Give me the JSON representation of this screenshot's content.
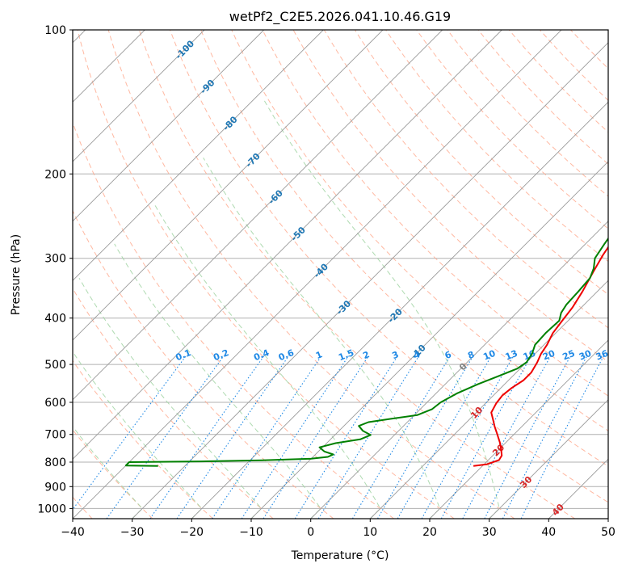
{
  "chart_data": {
    "type": "line",
    "title": "wetPf2_C2E5.2026.041.10.46.G19",
    "xlabel": "Temperature (°C)",
    "ylabel": "Pressure (hPa)",
    "xlim": [
      -40,
      50
    ],
    "ylim": [
      1050,
      100
    ],
    "x_ticks": [
      "−40",
      "−30",
      "−20",
      "−10",
      "0",
      "10",
      "20",
      "30",
      "40",
      "50"
    ],
    "y_ticks": [
      "100",
      "200",
      "300",
      "400",
      "500",
      "600",
      "700",
      "800",
      "900",
      "1000"
    ],
    "series": [
      {
        "name": "temperature",
        "color": "#ee0000",
        "points": [
          [
            18.5,
            815
          ],
          [
            20.5,
            808
          ],
          [
            21.8,
            792
          ],
          [
            21.5,
            775
          ],
          [
            20.5,
            755
          ],
          [
            19.0,
            728
          ],
          [
            17.0,
            697
          ],
          [
            15.5,
            675
          ],
          [
            14.0,
            652
          ],
          [
            12.5,
            630
          ],
          [
            11.8,
            603
          ],
          [
            11.5,
            580
          ],
          [
            11.8,
            560
          ],
          [
            12.5,
            540
          ],
          [
            12.5,
            520
          ],
          [
            11.8,
            495
          ],
          [
            11.0,
            475
          ],
          [
            10.5,
            455
          ],
          [
            9.5,
            430
          ],
          [
            9.0,
            405
          ],
          [
            8.5,
            380
          ],
          [
            7.5,
            352
          ],
          [
            6.0,
            320
          ],
          [
            4.8,
            295
          ],
          [
            3.8,
            270
          ],
          [
            2.0,
            245
          ],
          [
            0.5,
            225
          ],
          [
            -1.5,
            205
          ],
          [
            -3.0,
            185
          ],
          [
            -4.0,
            172
          ],
          [
            -4.5,
            160
          ],
          [
            -3.0,
            155
          ],
          [
            2.0,
            146
          ],
          [
            5.5,
            139
          ],
          [
            7.0,
            132
          ],
          [
            8.3,
            124
          ],
          [
            9.0,
            113
          ],
          [
            10.5,
            105
          ],
          [
            11.2,
            101
          ]
        ]
      },
      {
        "name": "dewpoint",
        "color": "#008000",
        "points": [
          [
            -34.5,
            815
          ],
          [
            -40.0,
            813
          ],
          [
            -40.0,
            800
          ],
          [
            -28.0,
            797
          ],
          [
            -18.0,
            793
          ],
          [
            -10.0,
            787
          ],
          [
            -7.5,
            780
          ],
          [
            -7.0,
            771
          ],
          [
            -9.0,
            760
          ],
          [
            -10.5,
            745
          ],
          [
            -8.5,
            730
          ],
          [
            -5.0,
            717
          ],
          [
            -4.0,
            702
          ],
          [
            -6.0,
            688
          ],
          [
            -7.5,
            672
          ],
          [
            -6.5,
            660
          ],
          [
            -3.5,
            650
          ],
          [
            0.5,
            638
          ],
          [
            2.0,
            620
          ],
          [
            2.3,
            600
          ],
          [
            3.5,
            575
          ],
          [
            5.5,
            550
          ],
          [
            7.5,
            530
          ],
          [
            9.5,
            510
          ],
          [
            10.0,
            495
          ],
          [
            9.5,
            475
          ],
          [
            8.5,
            455
          ],
          [
            8.3,
            430
          ],
          [
            8.5,
            405
          ],
          [
            7.5,
            390
          ],
          [
            7.0,
            375
          ],
          [
            6.8,
            352
          ],
          [
            6.5,
            330
          ],
          [
            5.5,
            315
          ],
          [
            4.0,
            300
          ],
          [
            3.2,
            280
          ],
          [
            2.5,
            262
          ],
          [
            2.3,
            248
          ],
          [
            1.0,
            230
          ],
          [
            -1.0,
            210
          ],
          [
            -3.0,
            190
          ],
          [
            -4.5,
            177
          ],
          [
            -4.5,
            168
          ],
          [
            -3.5,
            160
          ],
          [
            -5.0,
            150
          ],
          [
            -6.3,
            140
          ],
          [
            -6.5,
            132
          ],
          [
            -5.0,
            122
          ],
          [
            -3.5,
            113
          ],
          [
            -1.5,
            105
          ],
          [
            0.5,
            100
          ]
        ]
      }
    ],
    "dry_adiabats_c": [
      -40,
      -30,
      -20,
      -10,
      0,
      10,
      20,
      30,
      40,
      50,
      60,
      70,
      80,
      90,
      100,
      110,
      120,
      130,
      140,
      150,
      160,
      170,
      180
    ],
    "moist_adiabats_c": [
      -30,
      -20,
      -10,
      0,
      10,
      20,
      30
    ],
    "isotherm_labels": [
      "-100",
      "-90",
      "-80",
      "-70",
      "-60",
      "-50",
      "-40",
      "-30",
      "-20",
      "-10",
      "0",
      "10",
      "20",
      "30",
      "40"
    ],
    "mixing_ratios": [
      "0.1",
      "0.2",
      "0.4",
      "0.6",
      "1",
      "1.5",
      "2",
      "3",
      "4",
      "6",
      "8",
      "10",
      "13",
      "16",
      "20",
      "25",
      "30",
      "36"
    ],
    "colors": {
      "isotherm": "#9a9a9a",
      "isotherm_label_cold": "#1f77b4",
      "isotherm_label_zero": "#808080",
      "isotherm_label_warm": "#d62728",
      "dry_adiabat": "#ffab91",
      "moist_adiabat": "#a5d6a7",
      "mixing_ratio": "#1e88e5",
      "grid": "#b0b0b0"
    }
  }
}
